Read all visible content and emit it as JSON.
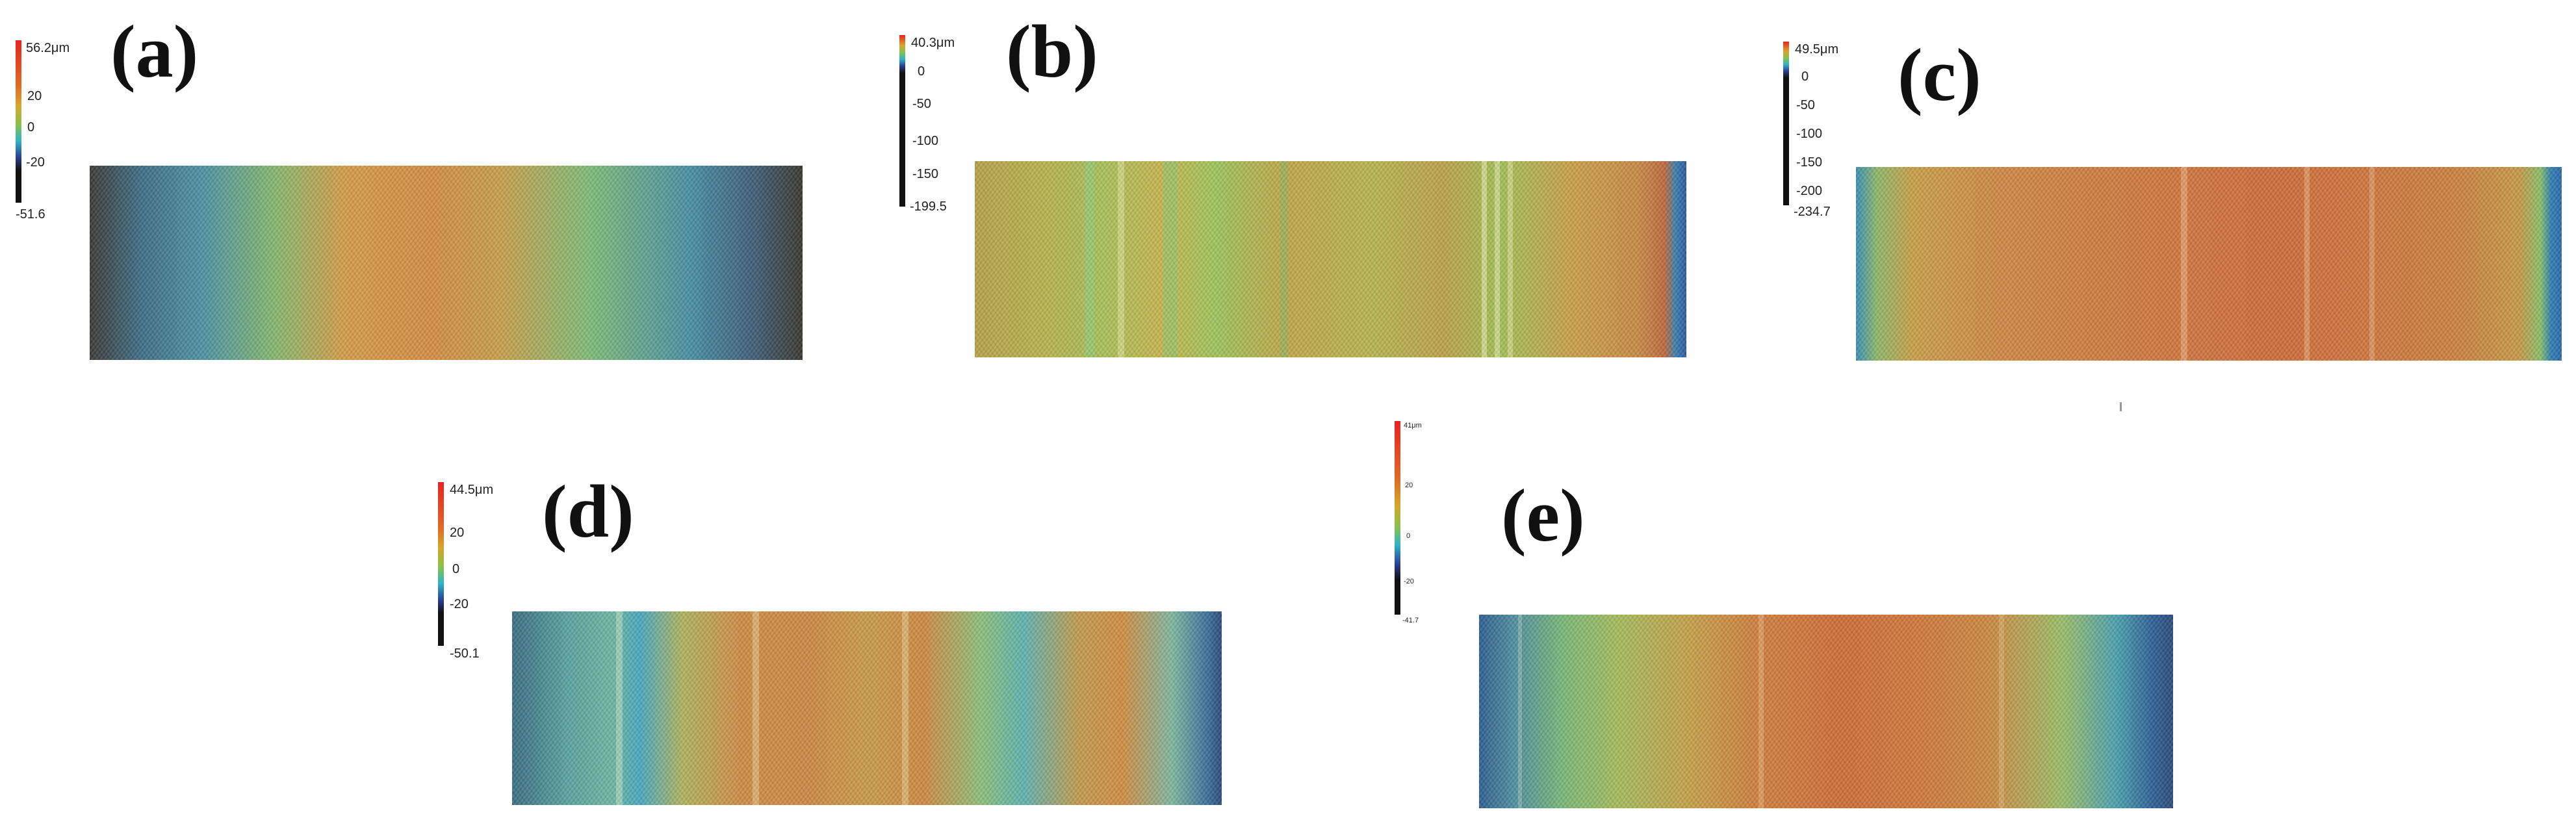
{
  "panels": [
    {
      "id": "a",
      "label": "(a)",
      "colorbar": {
        "max": "56.2μm",
        "ticks": [
          "20",
          "0",
          "-20"
        ],
        "min": "-51.6"
      }
    },
    {
      "id": "b",
      "label": "(b)",
      "colorbar": {
        "max": "40.3μm",
        "ticks": [
          "0",
          "-50",
          "-100",
          "-150"
        ],
        "min": "-199.5"
      }
    },
    {
      "id": "c",
      "label": "(c)",
      "colorbar": {
        "max": "49.5μm",
        "ticks": [
          "0",
          "-50",
          "-100",
          "-150",
          "-200"
        ],
        "min": "-234.7"
      }
    },
    {
      "id": "d",
      "label": "(d)",
      "colorbar": {
        "max": "44.5μm",
        "ticks": [
          "20",
          "0",
          "-20"
        ],
        "min": "-50.1"
      }
    },
    {
      "id": "e",
      "label": "(e)",
      "colorbar": {
        "max": "41μm",
        "ticks": [
          "20",
          "0",
          "-20"
        ],
        "min": "-41.7"
      }
    }
  ],
  "colors": {
    "scale_high": "#e8231f",
    "scale_mid_warm": "#d9a52b",
    "scale_mid": "#86c24a",
    "scale_mid_cool": "#2fb4c8",
    "scale_low": "#2b3f93",
    "scale_floor": "#111111"
  }
}
